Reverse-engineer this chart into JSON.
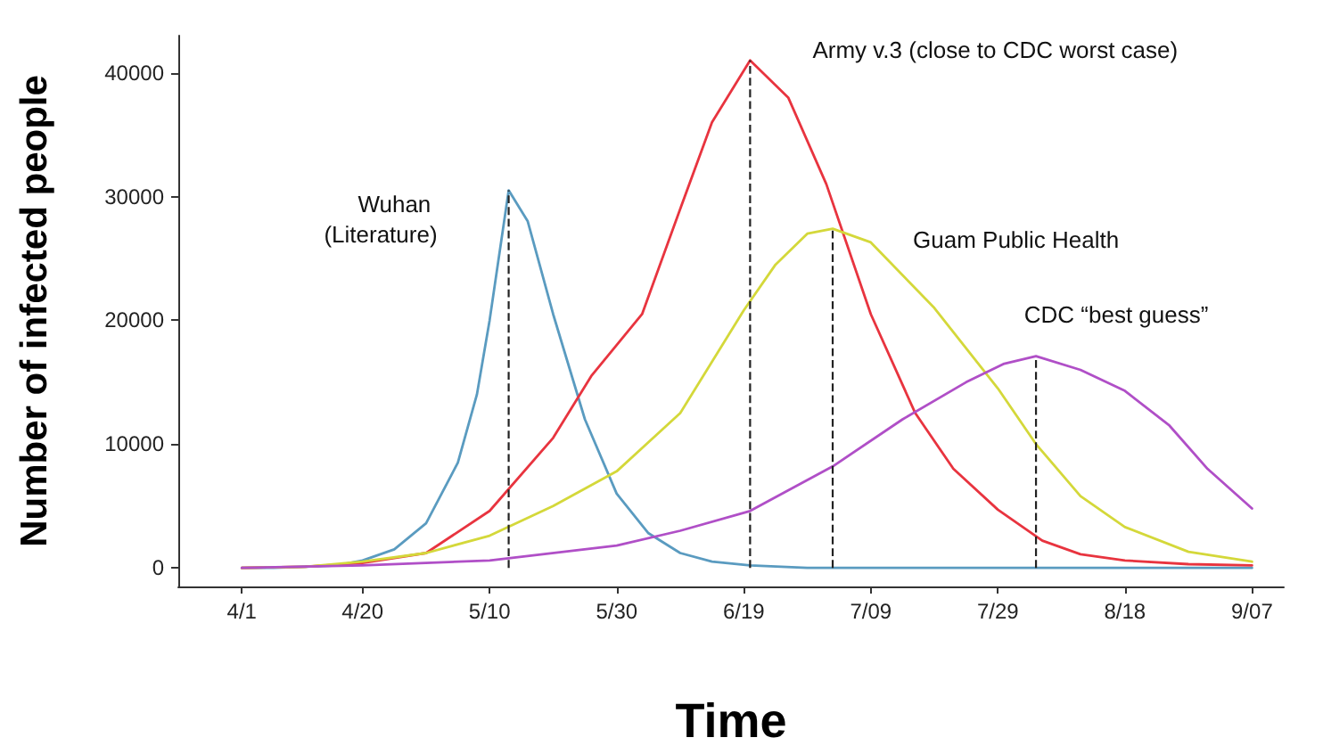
{
  "chart_data": {
    "type": "line",
    "xlabel": "Time",
    "ylabel": "Number of infected people",
    "xlim": [
      "--03-22",
      "--09-12"
    ],
    "ylim": [
      -1500,
      43000
    ],
    "xticks": [
      {
        "value": "--04-01",
        "label": "4/1"
      },
      {
        "value": "--04-20",
        "label": "4/20"
      },
      {
        "value": "--05-10",
        "label": "5/10"
      },
      {
        "value": "--05-30",
        "label": "5/30"
      },
      {
        "value": "--06-19",
        "label": "6/19"
      },
      {
        "value": "--07-09",
        "label": "7/09"
      },
      {
        "value": "--07-29",
        "label": "7/29"
      },
      {
        "value": "--08-18",
        "label": "8/18"
      },
      {
        "value": "--09-07",
        "label": "9/07"
      }
    ],
    "yticks": [
      0,
      10000,
      20000,
      30000,
      40000
    ],
    "grid": false,
    "legend": false,
    "marker": "none",
    "line_style": "solid",
    "series": [
      {
        "name": "Wuhan (Literature)",
        "color": "#5a9bc0",
        "x": [
          "--04-01",
          "--04-06",
          "--04-11",
          "--04-16",
          "--04-20",
          "--04-25",
          "--04-30",
          "--05-05",
          "--05-08",
          "--05-10",
          "--05-13",
          "--05-16",
          "--05-20",
          "--05-25",
          "--05-30",
          "--06-04",
          "--06-09",
          "--06-14",
          "--06-20",
          "--06-29",
          "--07-09",
          "--09-07"
        ],
        "values": [
          0,
          0,
          100,
          200,
          600,
          1500,
          3600,
          8500,
          14000,
          20000,
          30500,
          28000,
          20500,
          12000,
          6000,
          2800,
          1200,
          500,
          200,
          0,
          0,
          0
        ]
      },
      {
        "name": "Army v.3 (close to CDC worst case)",
        "color": "#e8343f",
        "x": [
          "--04-01",
          "--04-11",
          "--04-20",
          "--04-30",
          "--05-10",
          "--05-20",
          "--05-26",
          "--06-03",
          "--06-09",
          "--06-14",
          "--06-20",
          "--06-26",
          "--07-02",
          "--07-09",
          "--07-16",
          "--07-22",
          "--07-29",
          "--08-05",
          "--08-11",
          "--08-18",
          "--08-28",
          "--09-07"
        ],
        "values": [
          0,
          100,
          400,
          1200,
          4600,
          10500,
          15500,
          20500,
          29000,
          36000,
          41000,
          38000,
          31000,
          20500,
          12500,
          8000,
          4700,
          2200,
          1100,
          600,
          300,
          200
        ]
      },
      {
        "name": "Guam Public Health",
        "color": "#d4d83a",
        "x": [
          "--04-01",
          "--04-11",
          "--04-20",
          "--04-30",
          "--05-10",
          "--05-20",
          "--05-30",
          "--06-09",
          "--06-19",
          "--06-24",
          "--06-29",
          "--07-03",
          "--07-09",
          "--07-19",
          "--07-29",
          "--08-04",
          "--08-11",
          "--08-18",
          "--08-28",
          "--09-07"
        ],
        "values": [
          0,
          100,
          500,
          1200,
          2600,
          5000,
          7800,
          12500,
          20800,
          24500,
          27000,
          27400,
          26300,
          21000,
          14500,
          10000,
          5800,
          3300,
          1300,
          500
        ]
      },
      {
        "name": "CDC “best guess”",
        "color": "#b04fc7",
        "x": [
          "--04-01",
          "--04-20",
          "--05-10",
          "--05-30",
          "--06-09",
          "--06-20",
          "--07-03",
          "--07-14",
          "--07-24",
          "--07-30",
          "--08-04",
          "--08-11",
          "--08-18",
          "--08-25",
          "--08-31",
          "--09-07"
        ],
        "values": [
          0,
          200,
          600,
          1800,
          3000,
          4600,
          8200,
          12000,
          15000,
          16500,
          17100,
          16000,
          14300,
          11500,
          8000,
          4800
        ]
      }
    ],
    "ref_lines": [
      {
        "axis": "x",
        "value": "--05-13",
        "color": "#222222",
        "line_style": "dashed"
      },
      {
        "axis": "x",
        "value": "--06-20",
        "color": "#222222",
        "line_style": "dashed"
      },
      {
        "axis": "x",
        "value": "--07-03",
        "color": "#222222",
        "line_style": "dashed"
      },
      {
        "axis": "x",
        "value": "--08-04",
        "color": "#222222",
        "line_style": "dashed"
      }
    ]
  }
}
